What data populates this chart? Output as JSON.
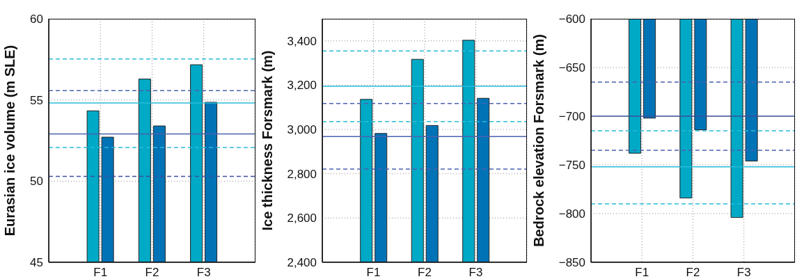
{
  "chart_data": [
    {
      "type": "bar",
      "ylabel": "Eurasian ice volume (m SLE)",
      "categories": [
        "F1",
        "F2",
        "F3"
      ],
      "series": [
        {
          "color": "#00a9c6",
          "values": [
            54.33,
            56.29,
            57.17
          ]
        },
        {
          "color": "#0073b7",
          "values": [
            52.71,
            53.4,
            54.86
          ]
        }
      ],
      "ylim": [
        45,
        60
      ],
      "yticks": [
        45,
        50,
        55,
        60
      ],
      "grid": true,
      "ref_lines": [
        {
          "axis": "y",
          "value": 57.53,
          "color": "#29bcd8",
          "line_style": "dashed"
        },
        {
          "axis": "y",
          "value": 55.57,
          "color": "#4a62b0",
          "line_style": "dashed"
        },
        {
          "axis": "y",
          "value": 54.81,
          "color": "#29bcd8",
          "line_style": "solid"
        },
        {
          "axis": "y",
          "value": 52.91,
          "color": "#4a62b0",
          "line_style": "solid"
        },
        {
          "axis": "y",
          "value": 52.07,
          "color": "#29bcd8",
          "line_style": "dashed"
        },
        {
          "axis": "y",
          "value": 50.29,
          "color": "#3a4f9e",
          "line_style": "dashed"
        }
      ]
    },
    {
      "type": "bar",
      "ylabel": "Ice thickness Forsmark (m)",
      "categories": [
        "F1",
        "F2",
        "F3"
      ],
      "series": [
        {
          "color": "#00a9c6",
          "values": [
            3136,
            3317,
            3403
          ]
        },
        {
          "color": "#0073b7",
          "values": [
            2982,
            3018,
            3141
          ]
        }
      ],
      "ylim": [
        2400,
        3500
      ],
      "yticks": [
        {
          "value": 2400,
          "label": "2,400"
        },
        {
          "value": 2600,
          "label": "2,600"
        },
        {
          "value": 2800,
          "label": "2,800"
        },
        {
          "value": 3000,
          "label": "3,000"
        },
        {
          "value": 3200,
          "label": "3,200"
        },
        {
          "value": 3400,
          "label": "3,400"
        }
      ],
      "grid": true,
      "ref_lines": [
        {
          "axis": "y",
          "value": 3355,
          "color": "#29bcd8",
          "line_style": "dashed"
        },
        {
          "axis": "y",
          "value": 3195,
          "color": "#29bcd8",
          "line_style": "solid"
        },
        {
          "axis": "y",
          "value": 3117,
          "color": "#4a62b0",
          "line_style": "dashed"
        },
        {
          "axis": "y",
          "value": 3036,
          "color": "#29bcd8",
          "line_style": "dashed"
        },
        {
          "axis": "y",
          "value": 2968,
          "color": "#4a62b0",
          "line_style": "solid"
        },
        {
          "axis": "y",
          "value": 2821,
          "color": "#4a62b0",
          "line_style": "dashed"
        }
      ]
    },
    {
      "type": "bar",
      "ylabel": "Bedrock elevation Forsmark (m)",
      "categories": [
        "F1",
        "F2",
        "F3"
      ],
      "series": [
        {
          "color": "#00a9c6",
          "values": [
            -738,
            -784,
            -804
          ]
        },
        {
          "color": "#0073b7",
          "values": [
            -702,
            -714,
            -746
          ]
        }
      ],
      "ylim": [
        -850,
        -600
      ],
      "yticks": [
        {
          "value": -850,
          "label": "−850"
        },
        {
          "value": -800,
          "label": "−800"
        },
        {
          "value": -750,
          "label": "−750"
        },
        {
          "value": -700,
          "label": "−700"
        },
        {
          "value": -650,
          "label": "−650"
        },
        {
          "value": -600,
          "label": "−600"
        }
      ],
      "grid": true,
      "ref_lines": [
        {
          "axis": "y",
          "value": -665,
          "color": "#4a62b0",
          "line_style": "dashed"
        },
        {
          "axis": "y",
          "value": -700,
          "color": "#3a4f9e",
          "line_style": "solid"
        },
        {
          "axis": "y",
          "value": -715,
          "color": "#29bcd8",
          "line_style": "dashed"
        },
        {
          "axis": "y",
          "value": -735,
          "color": "#4a62b0",
          "line_style": "dashed"
        },
        {
          "axis": "y",
          "value": -752,
          "color": "#29bcd8",
          "line_style": "solid"
        },
        {
          "axis": "y",
          "value": -790,
          "color": "#29bcd8",
          "line_style": "dashed"
        }
      ]
    }
  ]
}
